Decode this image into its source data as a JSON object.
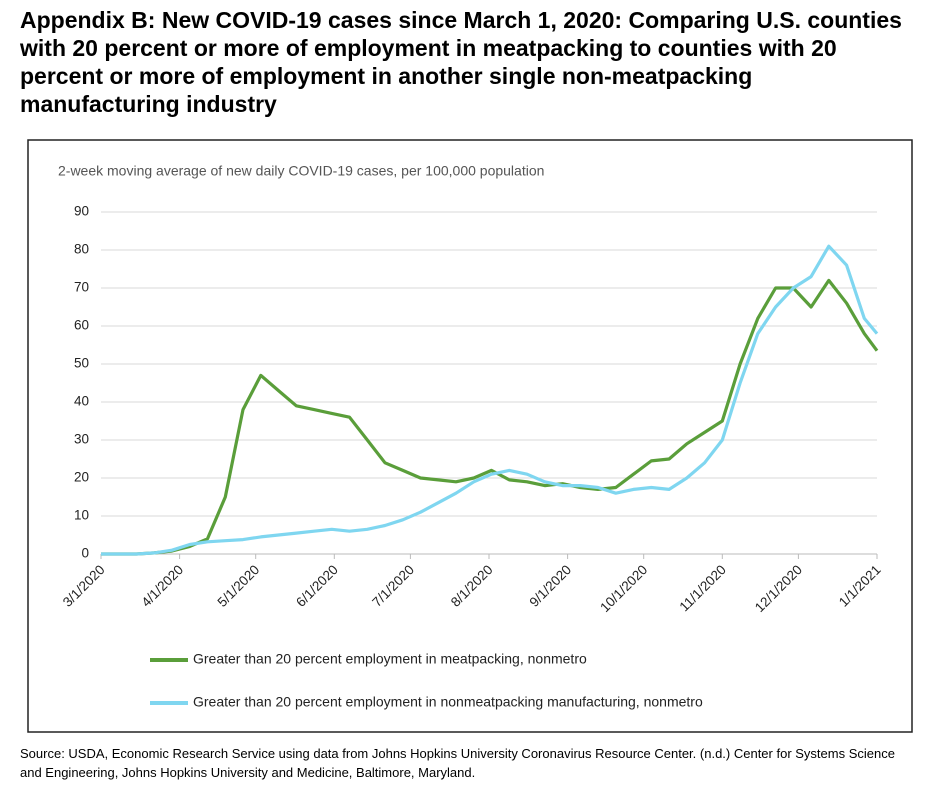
{
  "chart_data": {
    "type": "line",
    "title": "Appendix B: New COVID-19 cases since March 1, 2020: Comparing U.S. counties with 20 percent or more of employment in meatpacking to counties with 20 percent or more of employment in another single non-meatpacking manufacturing industry",
    "subtitle": "2-week moving average of new daily COVID-19 cases, per 100,000 population",
    "source": "Source: USDA, Economic Research Service using data from Johns Hopkins University Coronavirus Resource Center. (n.d.) Center for Systems Science and Engineering, Johns Hopkins University and Medicine, Baltimore, Maryland.",
    "x": [
      "3/1/2020",
      "3/8/2020",
      "3/15/2020",
      "3/22/2020",
      "3/29/2020",
      "4/5/2020",
      "4/12/2020",
      "4/19/2020",
      "4/26/2020",
      "5/3/2020",
      "5/10/2020",
      "5/17/2020",
      "5/24/2020",
      "5/31/2020",
      "6/7/2020",
      "6/14/2020",
      "6/21/2020",
      "6/28/2020",
      "7/5/2020",
      "7/12/2020",
      "7/19/2020",
      "7/26/2020",
      "8/2/2020",
      "8/9/2020",
      "8/16/2020",
      "8/23/2020",
      "8/30/2020",
      "9/6/2020",
      "9/13/2020",
      "9/20/2020",
      "9/27/2020",
      "10/4/2020",
      "10/11/2020",
      "10/18/2020",
      "10/25/2020",
      "11/1/2020",
      "11/8/2020",
      "11/15/2020",
      "11/22/2020",
      "11/29/2020",
      "12/6/2020",
      "12/13/2020",
      "12/20/2020",
      "12/27/2020",
      "1/1/2021"
    ],
    "series": [
      {
        "name": "Greater than 20 percent employment in meatpacking, nonmetro",
        "color": "#5a9e3a",
        "values": [
          0,
          0,
          0,
          0.3,
          0.8,
          2,
          4,
          15,
          38,
          47,
          43,
          39,
          38,
          37,
          36,
          30,
          24,
          22,
          20,
          19.5,
          19,
          20,
          22,
          19.5,
          19,
          18,
          18.5,
          17.5,
          17,
          17.5,
          21,
          24.5,
          25,
          29,
          32,
          35,
          50,
          62,
          70,
          70,
          65,
          72,
          66,
          58,
          53.5
        ]
      },
      {
        "name": "Greater than 20 percent employment in nonmeatpacking manufacturing, nonmetro",
        "color": "#7fd6f0",
        "values": [
          0,
          0,
          0,
          0.3,
          1,
          2.5,
          3.2,
          3.5,
          3.8,
          4.5,
          5,
          5.5,
          6,
          6.5,
          6,
          6.5,
          7.5,
          9,
          11,
          13.5,
          16,
          19,
          21,
          22,
          21,
          19,
          18,
          18,
          17.5,
          16,
          17,
          17.5,
          17,
          20,
          24,
          30,
          45,
          58,
          65,
          70,
          73,
          81,
          76,
          62,
          58
        ]
      }
    ],
    "xlim": [
      "3/1/2020",
      "1/1/2021"
    ],
    "xticks": [
      "3/1/2020",
      "4/1/2020",
      "5/1/2020",
      "6/1/2020",
      "7/1/2020",
      "8/1/2020",
      "9/1/2020",
      "10/1/2020",
      "11/1/2020",
      "12/1/2020",
      "1/1/2021"
    ],
    "ylim": [
      0,
      90
    ],
    "yticks": [
      0,
      10,
      20,
      30,
      40,
      50,
      60,
      70,
      80,
      90
    ],
    "grid": true
  }
}
